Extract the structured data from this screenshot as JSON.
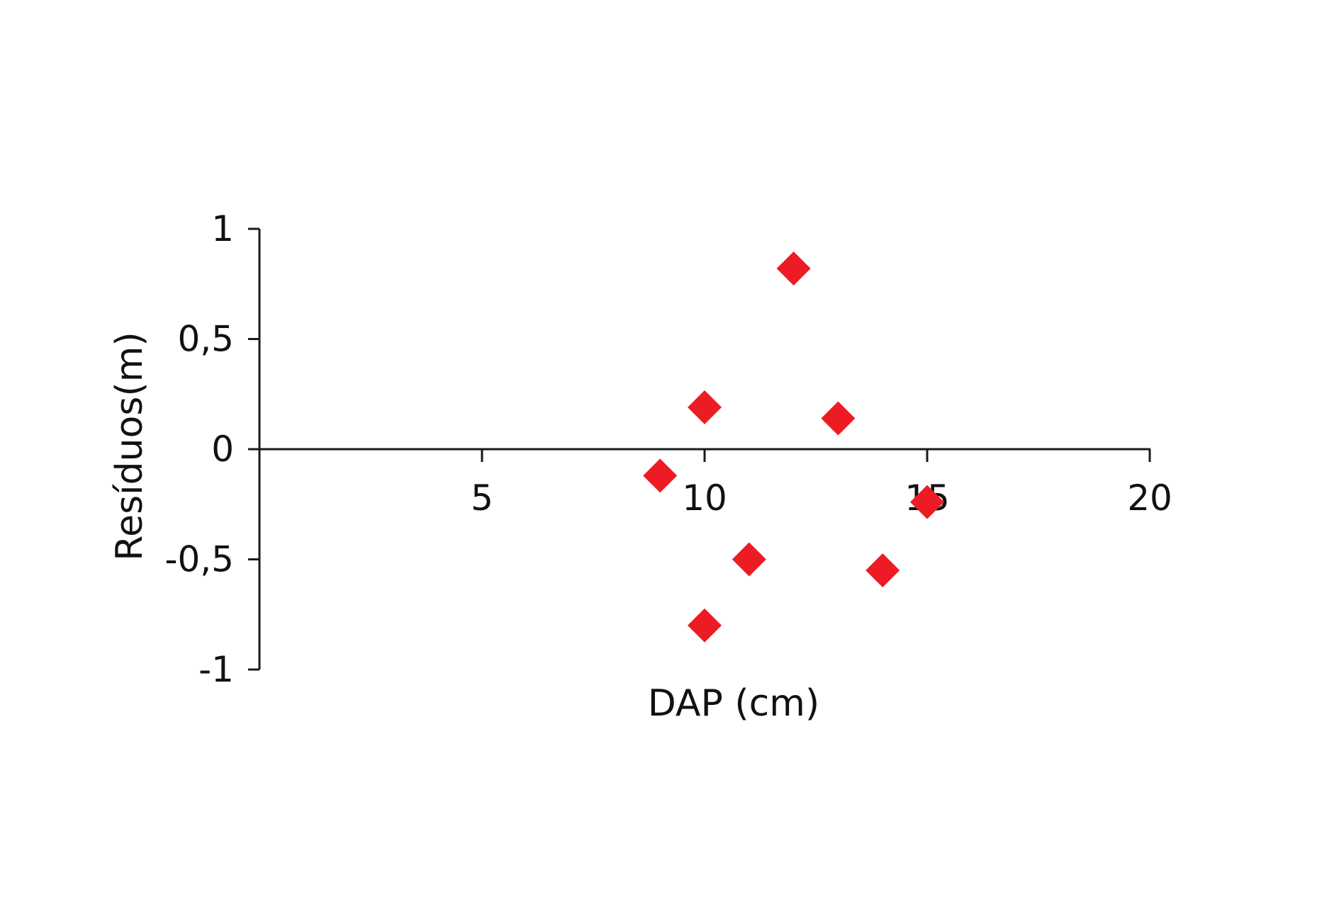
{
  "chart_data": {
    "type": "scatter",
    "xlabel": "DAP (cm)",
    "ylabel": "Resíduos(m)",
    "xlim": [
      0,
      20
    ],
    "ylim": [
      -1,
      1
    ],
    "x_ticks": [
      5,
      10,
      15,
      20
    ],
    "x_tick_labels": [
      "5",
      "10",
      "15",
      "20"
    ],
    "y_ticks": [
      1,
      0.5,
      0,
      -0.5,
      -1
    ],
    "y_tick_labels": [
      "1",
      "0,5",
      "0",
      "-0,5",
      "-1"
    ],
    "marker": "diamond",
    "marker_color": "#ED1C24",
    "axis_color": "#1a1a1a",
    "grid": false,
    "legend": "none",
    "points": [
      {
        "x": 9,
        "y": -0.12
      },
      {
        "x": 10,
        "y": 0.19
      },
      {
        "x": 10,
        "y": -0.8
      },
      {
        "x": 11,
        "y": -0.5
      },
      {
        "x": 12,
        "y": 0.82
      },
      {
        "x": 13,
        "y": 0.14
      },
      {
        "x": 14,
        "y": -0.55
      },
      {
        "x": 15,
        "y": -0.24
      }
    ]
  }
}
